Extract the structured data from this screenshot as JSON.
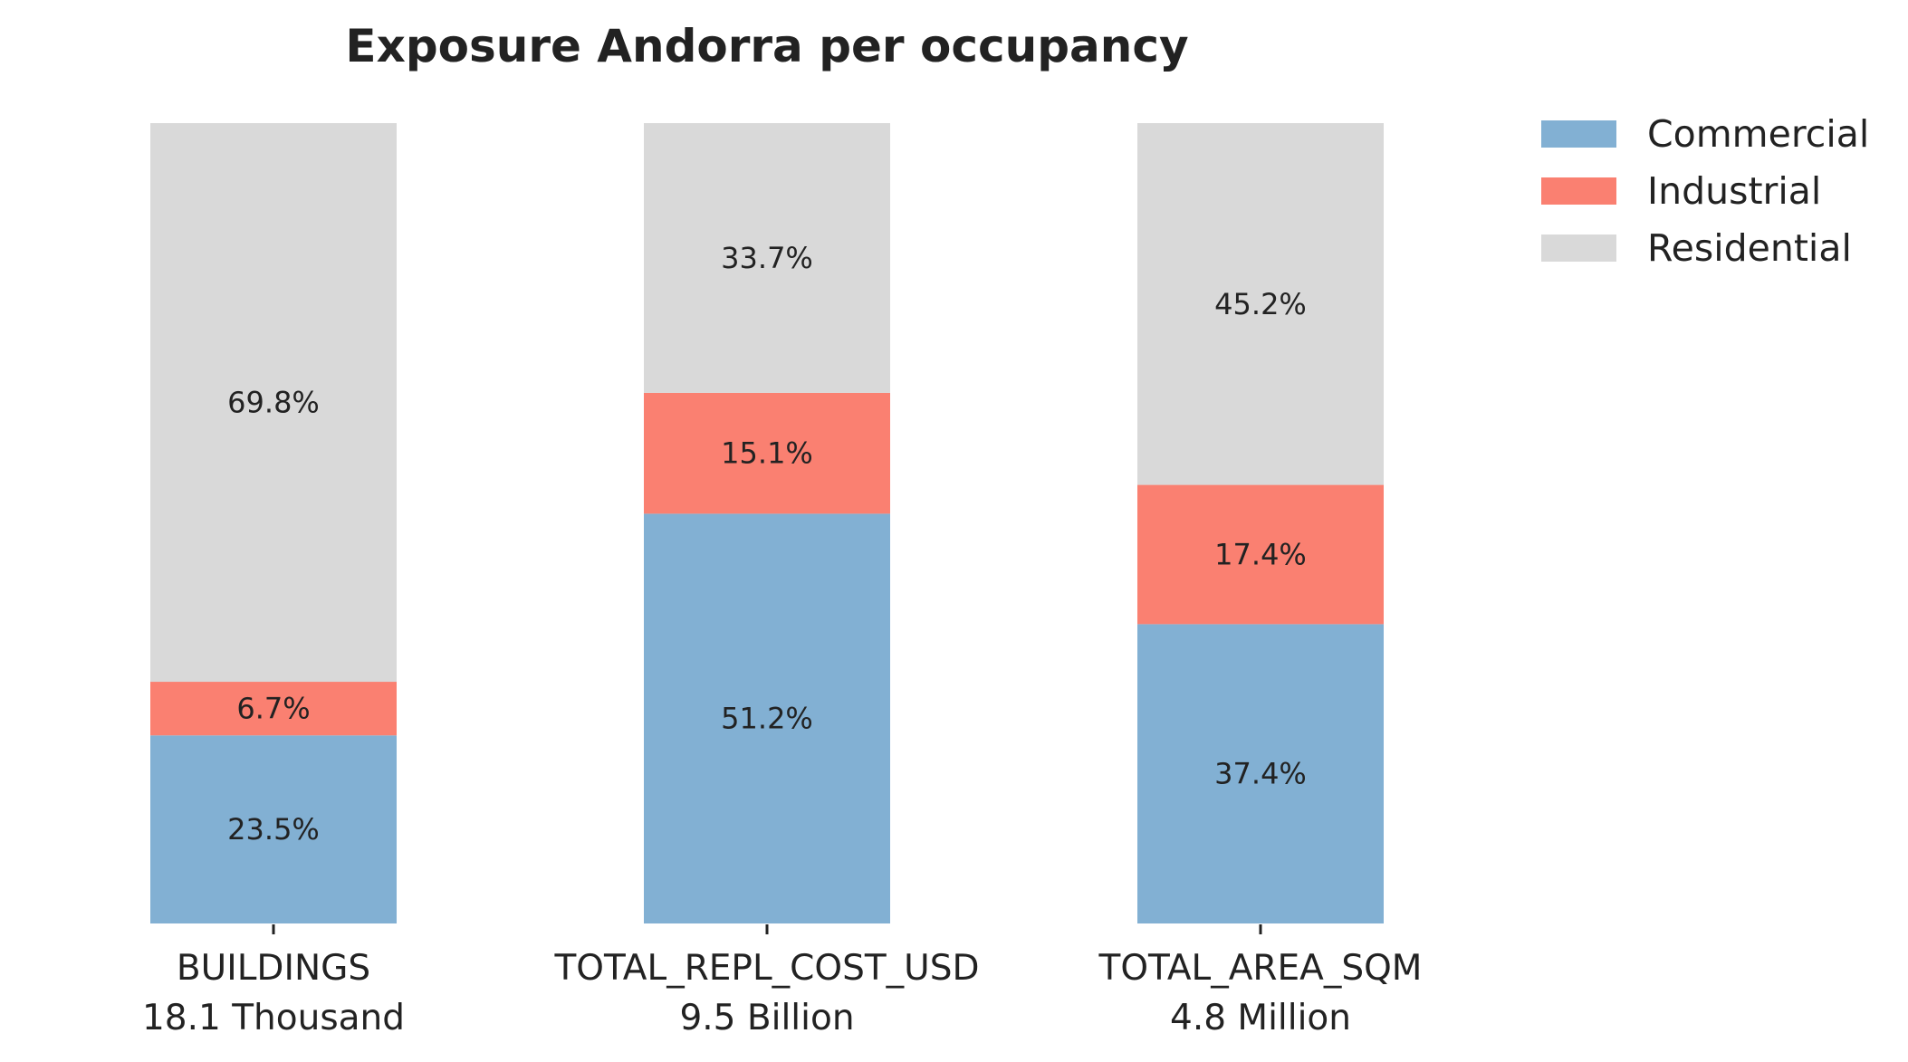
{
  "chart_data": {
    "type": "bar",
    "stacked": true,
    "title": "Exposure Andorra per occupancy",
    "xlabel": "",
    "ylabel": "",
    "ylim": [
      0,
      100
    ],
    "grid": false,
    "legend_position": "top-right",
    "categories": [
      {
        "name": "BUILDINGS",
        "total": "18.1 Thousand"
      },
      {
        "name": "TOTAL_REPL_COST_USD",
        "total": "9.5 Billion"
      },
      {
        "name": "TOTAL_AREA_SQM",
        "total": "4.8 Million"
      }
    ],
    "series": [
      {
        "name": "Commercial",
        "color": "#82b0d3",
        "values": [
          23.5,
          51.2,
          37.4
        ],
        "labels": [
          "23.5%",
          "51.2%",
          "37.4%"
        ]
      },
      {
        "name": "Industrial",
        "color": "#fa8071",
        "values": [
          6.7,
          15.1,
          17.4
        ],
        "labels": [
          "6.7%",
          "15.1%",
          "17.4%"
        ]
      },
      {
        "name": "Residential",
        "color": "#d9d9d9",
        "values": [
          69.8,
          33.7,
          45.2
        ],
        "labels": [
          "69.8%",
          "33.7%",
          "45.2%"
        ]
      }
    ]
  }
}
